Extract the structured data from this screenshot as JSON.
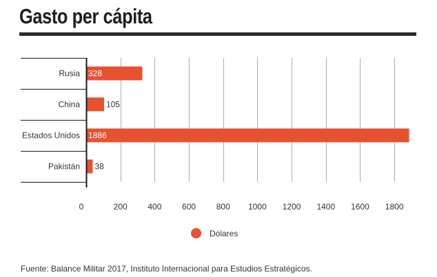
{
  "header": {
    "title": "Gasto per cápita"
  },
  "colors": {
    "bar": "#e8512f",
    "axis": "#1a1a1a",
    "grid": "#8a8a8a",
    "text": "#333333",
    "label_on_bar": "#ffffff"
  },
  "chart_data": {
    "type": "bar",
    "orientation": "horizontal",
    "categories": [
      "Rusia",
      "China",
      "Estados Unidos",
      "Pakistán"
    ],
    "series": [
      {
        "name": "Dólares",
        "values": [
          328,
          105,
          1886,
          38
        ]
      }
    ],
    "data_labels": [
      "328",
      "105",
      "1886",
      "38"
    ],
    "xlim": [
      0,
      1900
    ],
    "x_ticks": [
      0,
      200,
      400,
      600,
      800,
      1000,
      1200,
      1400,
      1600,
      1800
    ],
    "x_tick_labels": [
      "0",
      "200",
      "400",
      "600",
      "800",
      "1000",
      "1200",
      "1400",
      "1600",
      "1800"
    ],
    "grid": true,
    "legend_position": "bottom-center"
  },
  "legend": {
    "label": "Dólares"
  },
  "footer": {
    "source": "Fuente: Balance Militar 2017, Instituto Internacional para Estudios Estratégicos."
  }
}
